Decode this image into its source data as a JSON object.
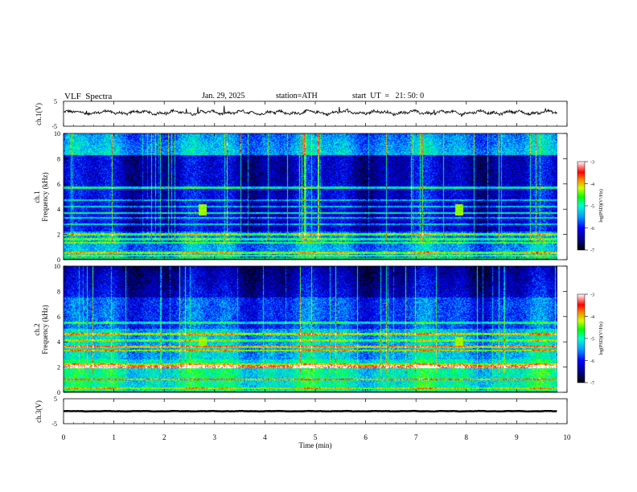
{
  "header": {
    "title": "VLF  Spectra",
    "date": "Jan. 29, 2025",
    "station": "station=ATH",
    "start": "start  UT  =   21: 50: 0"
  },
  "chart_data": [
    {
      "type": "line",
      "name": "ch1-waveform",
      "ylabel": "ch.1(V)",
      "ylim": [
        -5,
        5
      ],
      "yticks": [
        "5",
        "-5"
      ],
      "xlim": [
        0,
        10
      ],
      "offset_v": 0.5,
      "amplitude_v": 1.3,
      "color": "#000000"
    },
    {
      "type": "heatmap",
      "name": "ch1-spectrogram",
      "ylabel_top": "ch.1",
      "ylabel": "Frequency  (kHz)",
      "ylim": [
        0,
        10
      ],
      "yticks": [
        "0",
        "2",
        "4",
        "6",
        "8",
        "10"
      ],
      "xlim": [
        0,
        10.0
      ],
      "data_end_min": 9.8,
      "colorbar": {
        "label": "log(PSD)(V²/Hz)",
        "ticks": [
          "-3",
          "-4",
          "-5",
          "-6",
          "-7"
        ],
        "range": [
          -7,
          -3
        ]
      },
      "bands_khz": [
        0.3,
        0.5,
        1.3,
        1.6,
        2.0,
        2.8,
        3.3,
        3.7,
        4.2,
        4.7,
        5.7
      ],
      "burst_times_min": [
        2.75,
        7.85
      ]
    },
    {
      "type": "heatmap",
      "name": "ch2-spectrogram",
      "ylabel_top": "ch.2",
      "ylabel": "Frequency  (kHz)",
      "ylim": [
        0,
        10
      ],
      "yticks": [
        "0",
        "2",
        "4",
        "6",
        "8",
        "10"
      ],
      "xlim": [
        0,
        10.0
      ],
      "data_end_min": 9.8,
      "colorbar": {
        "label": "log(PSD)(V²/Hz)",
        "ticks": [
          "-3",
          "-4",
          "-5",
          "-6",
          "-7"
        ],
        "range": [
          -7,
          -3
        ]
      },
      "bands_khz": [
        0.3,
        1.0,
        2.0,
        2.2,
        3.3,
        3.6,
        4.1,
        4.6,
        5.5
      ],
      "burst_times_min": [
        2.75,
        7.85
      ]
    },
    {
      "type": "line",
      "name": "ch3-waveform",
      "ylabel": "ch.3(V)",
      "ylim": [
        -5,
        5
      ],
      "yticks": [
        "5",
        "-5"
      ],
      "xlim": [
        0,
        10
      ],
      "offset_v": 0.0,
      "amplitude_v": 0.15,
      "color": "#000000"
    }
  ],
  "x_axis": {
    "label": "Time  (min)",
    "ticks": [
      "0",
      "1",
      "2",
      "3",
      "4",
      "5",
      "6",
      "7",
      "8",
      "9",
      "10"
    ]
  }
}
